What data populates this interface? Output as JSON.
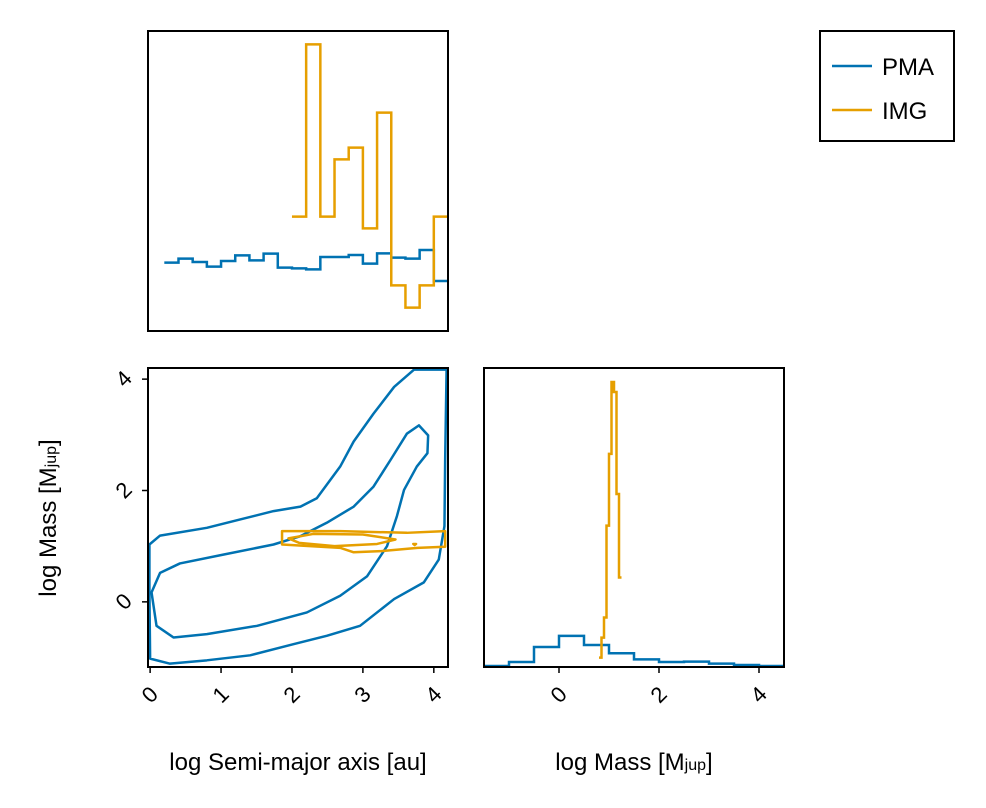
{
  "colors": {
    "PMA": "#0072b2",
    "IMG": "#e69f00"
  },
  "legend": {
    "placement": "top-right",
    "entries": [
      {
        "name": "PMA",
        "color": "#0072b2"
      },
      {
        "name": "IMG",
        "color": "#e69f00"
      }
    ]
  },
  "chart_data": [
    {
      "panel": "top-left",
      "type": "histogram-step",
      "xlim": [
        -0.03,
        4.2
      ],
      "ylim": [
        0,
        900
      ],
      "series": [
        {
          "name": "PMA",
          "bin_start": 0.2,
          "bin_width": 0.2,
          "values": [
            205,
            217,
            207,
            193,
            210,
            227,
            212,
            232,
            190,
            188,
            185,
            222,
            222,
            228,
            202,
            233,
            220,
            217,
            243,
            150
          ]
        },
        {
          "name": "IMG",
          "bin_start": 2.0,
          "bin_width": 0.2,
          "values": [
            343,
            860,
            343,
            515,
            550,
            308,
            655,
            137,
            70,
            137,
            343
          ]
        }
      ]
    },
    {
      "panel": "bottom-left",
      "type": "contour",
      "xlabel": {
        "text": "log Semi-major axis [au]"
      },
      "ylabel": {
        "text": "log Mass [M",
        "sub": "jup",
        "end": "]"
      },
      "xlim": [
        -0.03,
        4.2
      ],
      "ylim": [
        -1.17,
        4.2
      ],
      "xticks": [
        "0",
        "1",
        "2",
        "3",
        "4"
      ],
      "yticks": [
        "0",
        "2",
        "4"
      ],
      "series": [
        {
          "name": "PMA",
          "contours": [
            [
              [
                -0.01,
                1.03
              ],
              [
                0.14,
                1.19
              ],
              [
                0.8,
                1.33
              ],
              [
                1.27,
                1.48
              ],
              [
                1.74,
                1.63
              ],
              [
                2.12,
                1.71
              ],
              [
                2.35,
                1.86
              ],
              [
                2.68,
                2.43
              ],
              [
                2.87,
                2.88
              ],
              [
                3.15,
                3.38
              ],
              [
                3.44,
                3.86
              ],
              [
                3.72,
                4.17
              ],
              [
                4.18,
                4.17
              ],
              [
                4.16,
                2.55
              ],
              [
                4.15,
                1.36
              ],
              [
                4.07,
                0.76
              ],
              [
                3.86,
                0.35
              ],
              [
                3.44,
                0.05
              ],
              [
                2.96,
                -0.43
              ],
              [
                2.49,
                -0.61
              ],
              [
                2.02,
                -0.76
              ],
              [
                1.41,
                -0.96
              ],
              [
                0.8,
                -1.05
              ],
              [
                0.28,
                -1.11
              ],
              [
                0,
                -1.02
              ],
              [
                -0.01,
                0.17
              ]
            ],
            [
              [
                0.02,
                0.17
              ],
              [
                0.14,
                0.52
              ],
              [
                0.42,
                0.69
              ],
              [
                1.04,
                0.85
              ],
              [
                1.74,
                1.03
              ],
              [
                2.12,
                1.18
              ],
              [
                2.49,
                1.42
              ],
              [
                2.87,
                1.71
              ],
              [
                3.15,
                2.07
              ],
              [
                3.39,
                2.55
              ],
              [
                3.62,
                3.02
              ],
              [
                3.79,
                3.17
              ],
              [
                3.92,
                2.99
              ],
              [
                3.91,
                2.67
              ],
              [
                3.76,
                2.43
              ],
              [
                3.58,
                2.01
              ],
              [
                3.48,
                1.54
              ],
              [
                3.34,
                1.0
              ],
              [
                3.06,
                0.46
              ],
              [
                2.68,
                0.11
              ],
              [
                2.21,
                -0.19
              ],
              [
                1.51,
                -0.43
              ],
              [
                0.8,
                -0.58
              ],
              [
                0.33,
                -0.64
              ],
              [
                0.09,
                -0.43
              ]
            ]
          ]
        },
        {
          "name": "IMG",
          "contours": [
            [
              [
                1.86,
                1.27
              ],
              [
                2.68,
                1.27
              ],
              [
                3.62,
                1.24
              ],
              [
                4.16,
                1.27
              ],
              [
                4.16,
                0.99
              ],
              [
                3.77,
                0.97
              ],
              [
                3.25,
                0.91
              ],
              [
                2.87,
                0.89
              ],
              [
                2.68,
                0.97
              ],
              [
                1.86,
                1.03
              ]
            ],
            [
              [
                1.95,
                1.14
              ],
              [
                2.3,
                1.22
              ],
              [
                3.0,
                1.21
              ],
              [
                3.46,
                1.12
              ],
              [
                3.2,
                1.04
              ],
              [
                2.6,
                1.0
              ],
              [
                2.1,
                1.06
              ]
            ],
            [
              [
                3.71,
                1.04
              ],
              [
                3.75,
                1.04
              ],
              [
                3.73,
                1.02
              ]
            ]
          ]
        }
      ]
    },
    {
      "panel": "bottom-right",
      "type": "histogram-step",
      "xlabel": {
        "text": "log Mass [M",
        "sub": "jup",
        "end": "]"
      },
      "xlim": [
        -1.5,
        4.5
      ],
      "ylim": [
        0,
        895
      ],
      "xticks": [
        "0",
        "2",
        "4"
      ],
      "series": [
        {
          "name": "PMA",
          "bin_start": -1.5,
          "bin_width": 0.5,
          "values": [
            3,
            15,
            60,
            93,
            66,
            41,
            23,
            15,
            16,
            10,
            6,
            3
          ]
        },
        {
          "name": "IMG",
          "bin_start": 0.8,
          "bin_width": 0.05,
          "values": [
            28,
            88,
            148,
            423,
            638,
            853,
            823,
            518,
            268
          ]
        }
      ]
    }
  ]
}
